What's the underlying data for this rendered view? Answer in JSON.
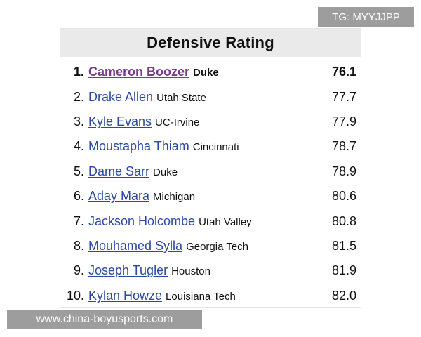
{
  "watermark_top": "TG: MYYJJPP",
  "watermark_bottom": "www.china-boyusports.com",
  "table": {
    "title": "Defensive Rating",
    "rows": [
      {
        "rank": "1.",
        "name": "Cameron Boozer",
        "school": "Duke",
        "value": "76.1"
      },
      {
        "rank": "2.",
        "name": "Drake Allen",
        "school": "Utah State",
        "value": "77.7"
      },
      {
        "rank": "3.",
        "name": "Kyle Evans",
        "school": "UC-Irvine",
        "value": "77.9"
      },
      {
        "rank": "4.",
        "name": "Moustapha Thiam",
        "school": "Cincinnati",
        "value": "78.7"
      },
      {
        "rank": "5.",
        "name": "Dame Sarr",
        "school": "Duke",
        "value": "78.9"
      },
      {
        "rank": "6.",
        "name": "Aday Mara",
        "school": "Michigan",
        "value": "80.6"
      },
      {
        "rank": "7.",
        "name": "Jackson Holcombe",
        "school": "Utah Valley",
        "value": "80.8"
      },
      {
        "rank": "8.",
        "name": "Mouhamed Sylla",
        "school": "Georgia Tech",
        "value": "81.5"
      },
      {
        "rank": "9.",
        "name": "Joseph Tugler",
        "school": "Houston",
        "value": "81.9"
      },
      {
        "rank": "10.",
        "name": "Kylan Howze",
        "school": "Louisiana Tech",
        "value": "82.0"
      }
    ]
  },
  "colors": {
    "link": "#2a48a4",
    "visited_link": "#7b3b8c",
    "header_bg": "#eaeaea"
  }
}
